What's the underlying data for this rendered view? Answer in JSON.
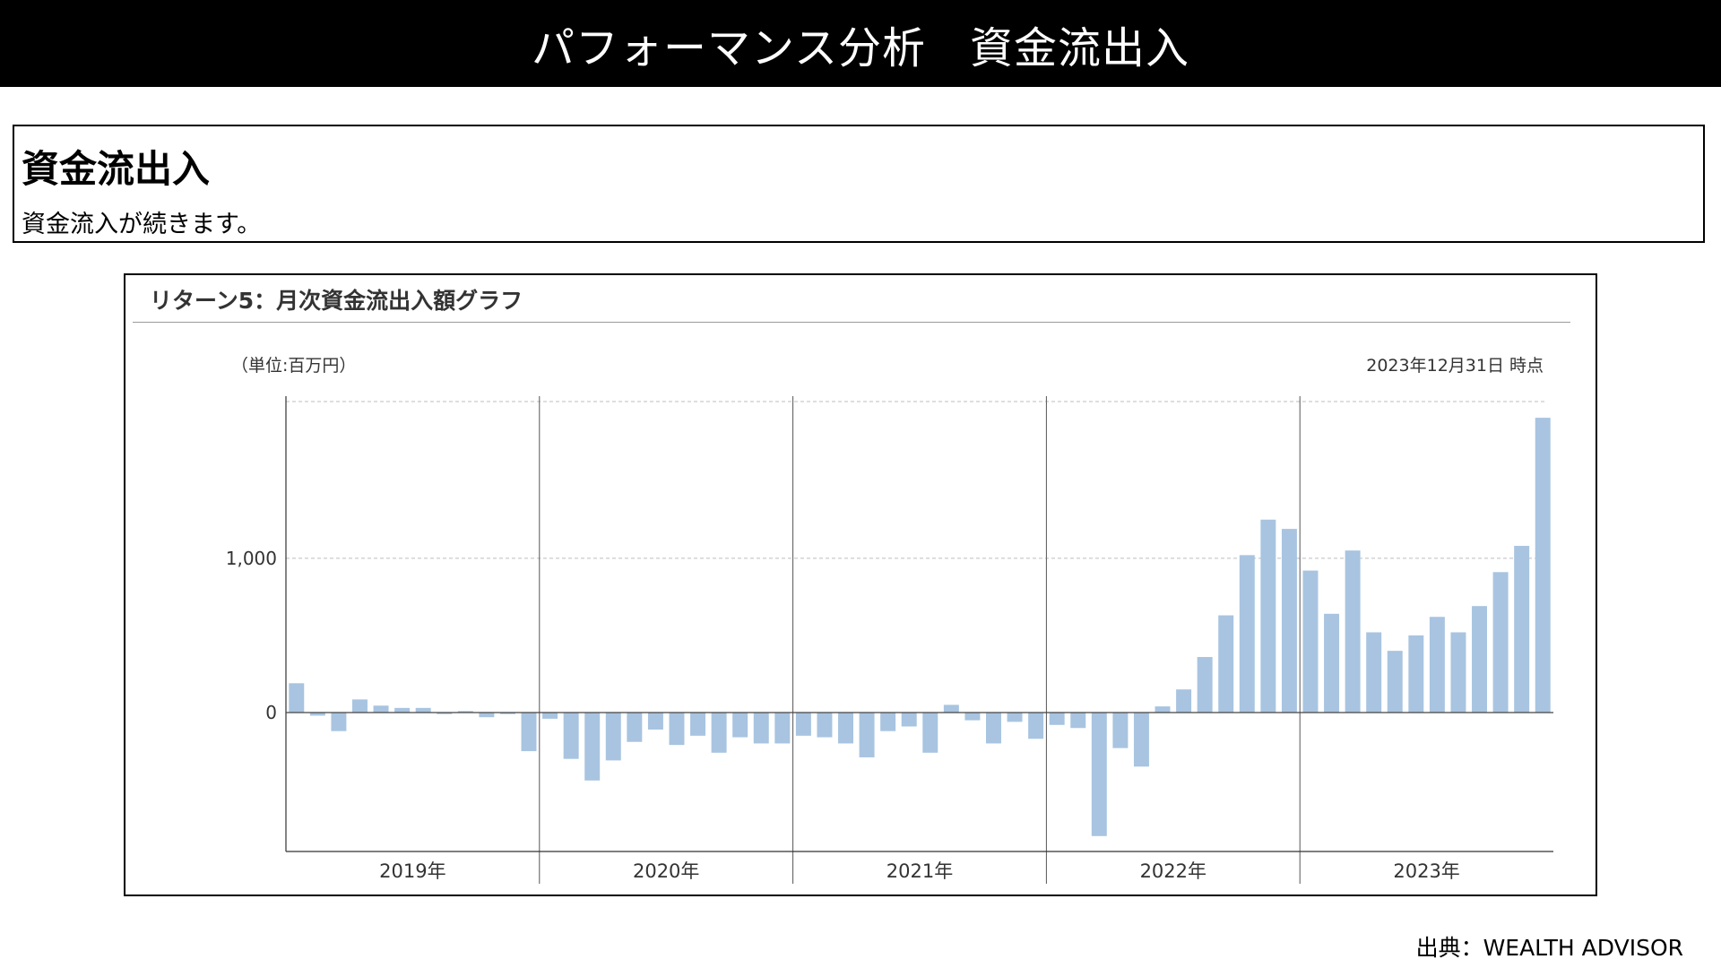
{
  "header": {
    "title": "パフォーマンス分析　資金流出入"
  },
  "summary": {
    "heading": "資金流出入",
    "text": "資金流入が続きます。"
  },
  "chart": {
    "title": "リターン5：月次資金流出入額グラフ",
    "unit_label": "（単位:百万円）",
    "date_label": "2023年12月31日 時点"
  },
  "chart_data": {
    "type": "bar",
    "title": "リターン5：月次資金流出入額グラフ",
    "ylabel": "（単位:百万円）",
    "ylim": [
      -900,
      2050
    ],
    "yticks": [
      0,
      1000
    ],
    "ytick_labels": [
      "0",
      "1,000"
    ],
    "grid": true,
    "bar_color": "#a8c4e0",
    "year_labels": [
      "2019年",
      "2020年",
      "2021年",
      "2022年",
      "2023年"
    ],
    "categories": [
      "2019-01",
      "2019-02",
      "2019-03",
      "2019-04",
      "2019-05",
      "2019-06",
      "2019-07",
      "2019-08",
      "2019-09",
      "2019-10",
      "2019-11",
      "2019-12",
      "2020-01",
      "2020-02",
      "2020-03",
      "2020-04",
      "2020-05",
      "2020-06",
      "2020-07",
      "2020-08",
      "2020-09",
      "2020-10",
      "2020-11",
      "2020-12",
      "2021-01",
      "2021-02",
      "2021-03",
      "2021-04",
      "2021-05",
      "2021-06",
      "2021-07",
      "2021-08",
      "2021-09",
      "2021-10",
      "2021-11",
      "2021-12",
      "2022-01",
      "2022-02",
      "2022-03",
      "2022-04",
      "2022-05",
      "2022-06",
      "2022-07",
      "2022-08",
      "2022-09",
      "2022-10",
      "2022-11",
      "2022-12",
      "2023-01",
      "2023-02",
      "2023-03",
      "2023-04",
      "2023-05",
      "2023-06",
      "2023-07",
      "2023-08",
      "2023-09",
      "2023-10",
      "2023-11",
      "2023-12"
    ],
    "values": [
      190,
      -20,
      -120,
      85,
      45,
      30,
      30,
      -10,
      10,
      -30,
      -10,
      -250,
      -40,
      -300,
      -440,
      -310,
      -190,
      -110,
      -210,
      -150,
      -260,
      -160,
      -200,
      -200,
      -150,
      -160,
      -200,
      -290,
      -120,
      -90,
      -260,
      50,
      -50,
      -200,
      -60,
      -170,
      -80,
      -100,
      -800,
      -230,
      -350,
      40,
      150,
      360,
      630,
      1020,
      1250,
      1190,
      920,
      640,
      1050,
      520,
      400,
      500,
      620,
      520,
      690,
      910,
      1080,
      1910
    ]
  },
  "source": "出典：WEALTH ADVISOR"
}
